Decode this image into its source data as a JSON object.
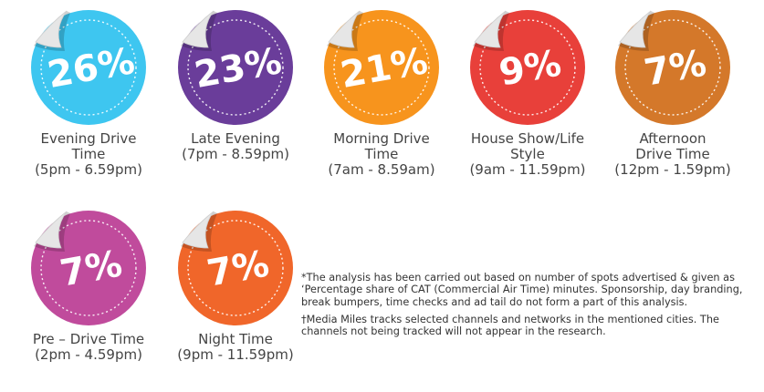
{
  "chart_data": {
    "type": "bar",
    "categories": [
      "Evening Drive Time (5pm - 6.59pm)",
      "Late Evening (7pm - 8.59pm)",
      "Morning Drive Time (7am - 8.59am)",
      "House Show/Life Style (9am - 11.59pm)",
      "Afternoon Drive Time (12pm - 1.59pm)",
      "Pre – Drive Time (2pm - 4.59pm)",
      "Night Time (9pm - 11.59pm)"
    ],
    "values": [
      26,
      23,
      21,
      9,
      7,
      7,
      7
    ],
    "unit": "%"
  },
  "stickers": [
    {
      "percent": "26%",
      "label": "Evening Drive Time (5pm - 6.59pm)",
      "label_lines": [
        "Evening Drive",
        "Time",
        "(5pm - 6.59pm)"
      ],
      "color": "#3ec6f0"
    },
    {
      "percent": "23%",
      "label": "Late Evening (7pm - 8.59pm)",
      "label_lines": [
        "Late Evening",
        "(7pm - 8.59pm)"
      ],
      "color": "#6a3d9a"
    },
    {
      "percent": "21%",
      "label": "Morning Drive Time (7am - 8.59am)",
      "label_lines": [
        "Morning Drive",
        "Time",
        "(7am - 8.59am)"
      ],
      "color": "#f7941d"
    },
    {
      "percent": "9%",
      "label": "House Show/Life Style (9am - 11.59pm)",
      "label_lines": [
        "House Show/Life",
        "Style",
        "(9am - 11.59pm)"
      ],
      "color": "#e8403a"
    },
    {
      "percent": "7%",
      "label": "Afternoon Drive Time (12pm - 1.59pm)",
      "label_lines": [
        "Afternoon",
        "Drive Time",
        "(12pm - 1.59pm)"
      ],
      "color": "#d4782a"
    },
    {
      "percent": "7%",
      "label": "Pre – Drive Time (2pm - 4.59pm)",
      "label_lines": [
        "Pre – Drive Time",
        "(2pm - 4.59pm)"
      ],
      "color": "#c04b9c"
    },
    {
      "percent": "7%",
      "label": "Night Time (9pm - 11.59pm)",
      "label_lines": [
        "Night Time",
        "(9pm - 11.59pm)"
      ],
      "color": "#f0662a"
    }
  ],
  "notes": {
    "analysis": "*The analysis has been carried out based on number of spots advertised & given as ‘Percentage share of CAT (Commercial Air Time) minutes. Sponsorship, day branding, break bumpers, time checks and ad tail do not form a part of this analysis.",
    "tracking": "†Media Miles tracks selected channels and networks in the mentioned cities. The channels not being tracked will not appear in the research."
  }
}
